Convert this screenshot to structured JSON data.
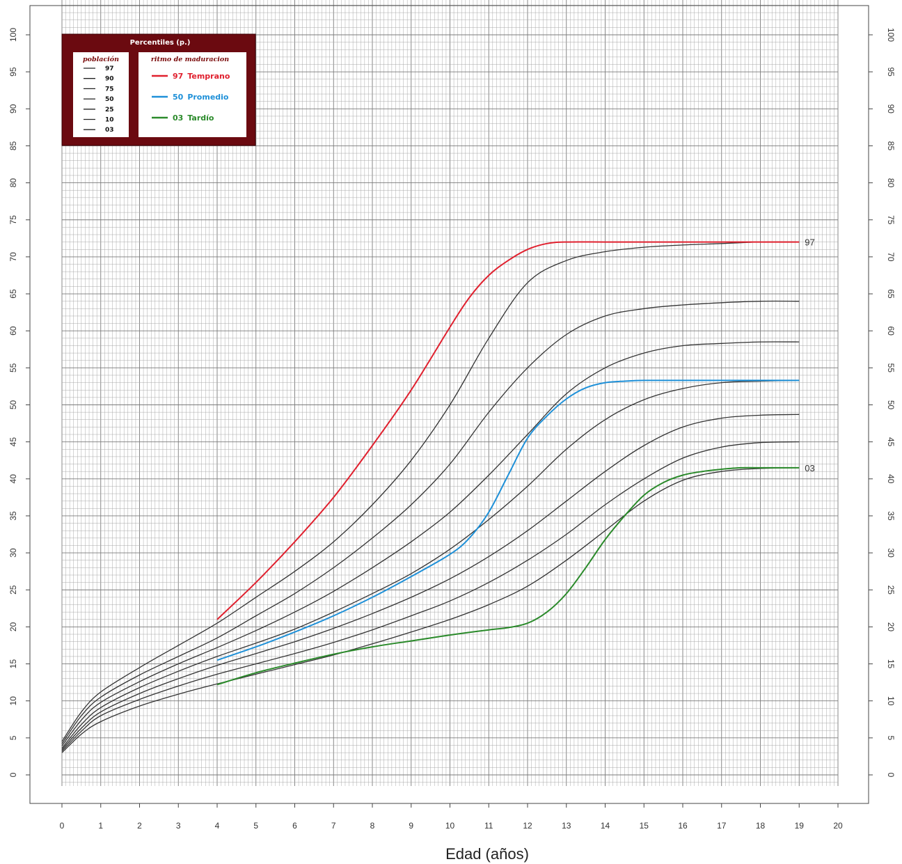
{
  "chart_data": {
    "type": "line",
    "xlabel": "Edad (años)",
    "ylabel": "",
    "xlim": [
      0,
      20
    ],
    "ylim": [
      0,
      100
    ],
    "x_ticks": [
      "0",
      "1",
      "2",
      "3",
      "4",
      "5",
      "6",
      "7",
      "8",
      "9",
      "10",
      "11",
      "12",
      "13",
      "14",
      "15",
      "16",
      "17",
      "18",
      "19",
      "20"
    ],
    "y_ticks": [
      "0",
      "5",
      "10",
      "15",
      "20",
      "25",
      "30",
      "35",
      "40",
      "45",
      "50",
      "55",
      "60",
      "65",
      "70",
      "75",
      "80",
      "85",
      "90",
      "95",
      "100"
    ],
    "grid": true,
    "legend": {
      "title": "Percentiles (p.)",
      "placement": "top-left",
      "population_title": "población",
      "population_entries": [
        "97",
        "90",
        "75",
        "50",
        "25",
        "10",
        "03"
      ],
      "maturation_title": "ritmo de maduracion",
      "maturation_entries": [
        {
          "code": "97",
          "label": "Temprano",
          "color": "#e0202e"
        },
        {
          "code": "50",
          "label": "Promedio",
          "color": "#1e90d8"
        },
        {
          "code": "03",
          "label": "Tardío",
          "color": "#2a8a2a"
        }
      ]
    },
    "end_labels": [
      "97",
      "03"
    ],
    "population_series": [
      {
        "name": "97",
        "color": "#333333",
        "x": [
          0,
          0.5,
          1,
          2,
          3,
          4,
          5,
          6,
          7,
          8,
          9,
          10,
          11,
          12,
          13,
          14,
          15,
          16,
          17,
          18,
          19
        ],
        "y": [
          4.5,
          8.5,
          11.2,
          14.5,
          17.5,
          20.5,
          24,
          27.5,
          31.5,
          36.5,
          42.5,
          50,
          59,
          66.5,
          69.5,
          70.7,
          71.3,
          71.6,
          71.8,
          72,
          72
        ]
      },
      {
        "name": "90",
        "color": "#333333",
        "x": [
          0,
          0.5,
          1,
          2,
          3,
          4,
          5,
          6,
          7,
          8,
          9,
          10,
          11,
          12,
          13,
          14,
          15,
          16,
          17,
          18,
          19
        ],
        "y": [
          4.2,
          8,
          10.5,
          13.5,
          16,
          18.5,
          21.5,
          24.5,
          28,
          32,
          36.5,
          42,
          49,
          55,
          59.5,
          62,
          63,
          63.5,
          63.8,
          64,
          64
        ]
      },
      {
        "name": "75",
        "color": "#333333",
        "x": [
          0,
          0.5,
          1,
          2,
          3,
          4,
          5,
          6,
          7,
          8,
          9,
          10,
          11,
          12,
          13,
          14,
          15,
          16,
          17,
          18,
          19
        ],
        "y": [
          3.9,
          7.4,
          9.8,
          12.6,
          15,
          17.2,
          19.5,
          22,
          24.8,
          28,
          31.5,
          35.5,
          40.5,
          46,
          51.5,
          55,
          57,
          58,
          58.3,
          58.5,
          58.5
        ]
      },
      {
        "name": "50",
        "color": "#333333",
        "x": [
          0,
          0.5,
          1,
          2,
          3,
          4,
          5,
          6,
          7,
          8,
          9,
          10,
          11,
          12,
          13,
          14,
          15,
          16,
          17,
          18,
          19
        ],
        "y": [
          3.6,
          6.8,
          9.1,
          11.8,
          14,
          16,
          17.8,
          19.7,
          22,
          24.5,
          27.2,
          30.5,
          34.5,
          39,
          44,
          48,
          50.7,
          52.2,
          53,
          53.2,
          53.3
        ]
      },
      {
        "name": "25",
        "color": "#333333",
        "x": [
          0,
          0.5,
          1,
          2,
          3,
          4,
          5,
          6,
          7,
          8,
          9,
          10,
          11,
          12,
          13,
          14,
          15,
          16,
          17,
          18,
          19
        ],
        "y": [
          3.4,
          6.3,
          8.5,
          11,
          13,
          14.8,
          16.4,
          18,
          19.8,
          21.8,
          24,
          26.5,
          29.5,
          33,
          37,
          41,
          44.5,
          47,
          48.2,
          48.6,
          48.7
        ]
      },
      {
        "name": "10",
        "color": "#333333",
        "x": [
          0,
          0.5,
          1,
          2,
          3,
          4,
          5,
          6,
          7,
          8,
          9,
          10,
          11,
          12,
          13,
          14,
          15,
          16,
          17,
          18,
          19
        ],
        "y": [
          3.2,
          5.9,
          8,
          10.2,
          12,
          13.6,
          15,
          16.4,
          17.9,
          19.6,
          21.5,
          23.5,
          26,
          29,
          32.5,
          36.5,
          40,
          42.8,
          44.3,
          44.9,
          45
        ]
      },
      {
        "name": "03",
        "color": "#333333",
        "x": [
          0,
          0.5,
          1,
          2,
          3,
          4,
          5,
          6,
          7,
          8,
          9,
          10,
          11,
          12,
          13,
          14,
          15,
          16,
          17,
          18,
          19
        ],
        "y": [
          3.0,
          5.5,
          7.2,
          9.3,
          10.9,
          12.3,
          13.6,
          14.9,
          16.2,
          17.7,
          19.3,
          21,
          23,
          25.5,
          29,
          33,
          37,
          39.8,
          41,
          41.4,
          41.5
        ]
      }
    ],
    "maturation_series": [
      {
        "name": "97 Temprano",
        "color": "#e0202e",
        "x": [
          4,
          5,
          6,
          7,
          8,
          9,
          10,
          10.5,
          11,
          11.5,
          12,
          12.5,
          13,
          14,
          15,
          16,
          17,
          18,
          19
        ],
        "y": [
          21,
          26,
          31.5,
          37.5,
          44.5,
          52,
          60.5,
          64.5,
          67.5,
          69.5,
          71,
          71.8,
          72,
          72,
          72,
          72,
          72,
          72,
          72
        ]
      },
      {
        "name": "50 Promedio",
        "color": "#1e90d8",
        "x": [
          4,
          5,
          6,
          7,
          8,
          9,
          10,
          10.5,
          11,
          11.5,
          12,
          12.5,
          13,
          13.5,
          14,
          14.5,
          15,
          16,
          17,
          18,
          19
        ],
        "y": [
          15.5,
          17.3,
          19.3,
          21.5,
          24,
          26.8,
          29.8,
          32,
          35.5,
          40.5,
          45.5,
          48.5,
          50.8,
          52.3,
          53,
          53.2,
          53.3,
          53.3,
          53.3,
          53.3,
          53.3
        ]
      },
      {
        "name": "03 Tardío",
        "color": "#2a8a2a",
        "x": [
          4,
          5,
          6,
          7,
          8,
          9,
          10,
          11,
          11.5,
          12,
          12.5,
          13,
          13.5,
          14,
          14.5,
          15,
          15.5,
          16,
          16.5,
          17,
          17.5,
          18,
          19
        ],
        "y": [
          12.2,
          13.8,
          15.1,
          16.3,
          17.3,
          18.1,
          18.9,
          19.6,
          19.9,
          20.5,
          22,
          24.5,
          28,
          31.8,
          35,
          37.8,
          39.5,
          40.5,
          41,
          41.3,
          41.5,
          41.5,
          41.5
        ]
      }
    ]
  }
}
